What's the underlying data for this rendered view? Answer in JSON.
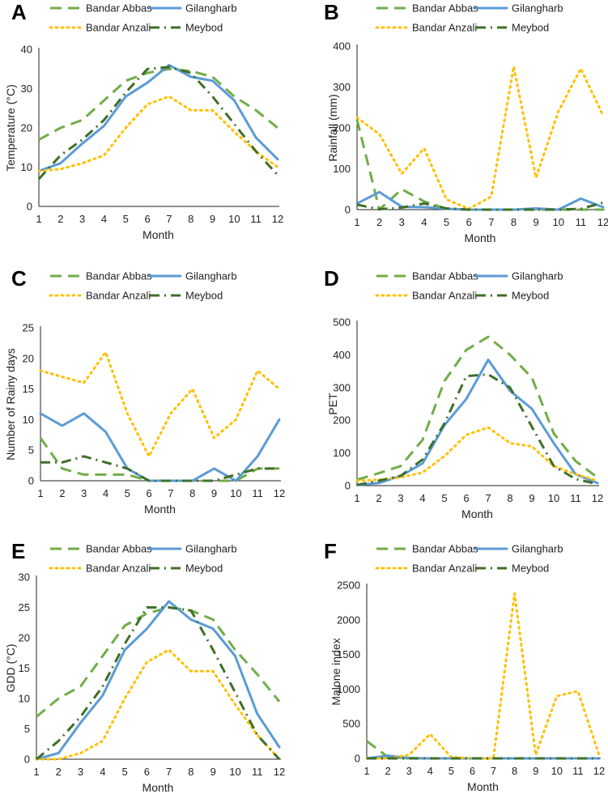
{
  "series_styles": {
    "Bandar Abbas": {
      "color": "#70ad47",
      "style": "dashed"
    },
    "Gilangharb": {
      "color": "#5b9bd5",
      "style": "solid"
    },
    "Bandar Anzali": {
      "color": "#ffc000",
      "style": "dotted"
    },
    "Meybod": {
      "color": "#3f6f27",
      "style": "dashdot"
    }
  },
  "chart_data": [
    {
      "panel": "A",
      "type": "line",
      "xlabel": "Month",
      "ylabel": "Temperature (°C)",
      "x": [
        1,
        2,
        3,
        4,
        5,
        6,
        7,
        8,
        9,
        10,
        11,
        12
      ],
      "ylim": [
        0,
        40
      ],
      "yticks": [
        0,
        10,
        20,
        30,
        40
      ],
      "legend": [
        "Bandar Abbas",
        "Gilangharb",
        "Bandar Anzali",
        "Meybod"
      ],
      "legend_position": "top",
      "series": [
        {
          "name": "Bandar Abbas",
          "values": [
            17,
            20,
            22,
            27,
            32,
            34,
            35,
            34.5,
            33,
            28,
            24.5,
            20
          ]
        },
        {
          "name": "Gilangharb",
          "values": [
            9,
            11,
            16,
            20.5,
            28,
            31.5,
            36,
            33,
            32,
            27,
            17.5,
            12
          ]
        },
        {
          "name": "Bandar Anzali",
          "values": [
            9,
            9.5,
            11,
            13,
            20,
            26,
            28,
            24.5,
            24.5,
            19,
            14,
            10
          ]
        },
        {
          "name": "Meybod",
          "values": [
            7,
            13,
            17,
            22,
            29,
            35,
            35.5,
            34,
            28,
            21,
            14,
            8
          ]
        }
      ]
    },
    {
      "panel": "B",
      "type": "line",
      "xlabel": "Month",
      "ylabel": "Rainfall (mm)",
      "x": [
        1,
        2,
        3,
        4,
        5,
        6,
        7,
        8,
        9,
        10,
        11,
        12
      ],
      "ylim": [
        0,
        400
      ],
      "yticks": [
        0,
        100,
        200,
        300,
        400
      ],
      "legend": [
        "Bandar Abbas",
        "Gilangharb",
        "Bandar Anzali",
        "Meybod"
      ],
      "legend_position": "top",
      "series": [
        {
          "name": "Bandar Abbas",
          "values": [
            220,
            0,
            50,
            20,
            2,
            0,
            0,
            0,
            0,
            0,
            0,
            0
          ]
        },
        {
          "name": "Gilangharb",
          "values": [
            15,
            43,
            7,
            6,
            2,
            0,
            0,
            0,
            3,
            0,
            27,
            6
          ]
        },
        {
          "name": "Bandar Anzali",
          "values": [
            225,
            185,
            88,
            150,
            25,
            2,
            32,
            350,
            78,
            240,
            345,
            230
          ]
        },
        {
          "name": "Meybod",
          "values": [
            12,
            1,
            5,
            15,
            3,
            0,
            0,
            0,
            0,
            0,
            2,
            17
          ]
        }
      ]
    },
    {
      "panel": "C",
      "type": "line",
      "xlabel": "Month",
      "ylabel": "Number of Rainy days",
      "x": [
        1,
        2,
        3,
        4,
        5,
        6,
        7,
        8,
        9,
        10,
        11,
        12
      ],
      "ylim": [
        0,
        25
      ],
      "yticks": [
        0,
        5,
        10,
        15,
        20,
        25
      ],
      "legend": [
        "Bandar Abbas",
        "Gilangharb",
        "Bandar Anzali",
        "Meybod"
      ],
      "legend_position": "top",
      "series": [
        {
          "name": "Bandar Abbas",
          "values": [
            7,
            2,
            1,
            1,
            1,
            0,
            0,
            0,
            0,
            0,
            2,
            2
          ]
        },
        {
          "name": "Gilangharb",
          "values": [
            11,
            9,
            11,
            8,
            2,
            0,
            0,
            0,
            2,
            0,
            4,
            10
          ]
        },
        {
          "name": "Bandar Anzali",
          "values": [
            18,
            17,
            16,
            21,
            11,
            4,
            11,
            15,
            7,
            10,
            18,
            15
          ]
        },
        {
          "name": "Meybod",
          "values": [
            3,
            3,
            4,
            3,
            2,
            0,
            0,
            0,
            0,
            1,
            2,
            2
          ]
        }
      ]
    },
    {
      "panel": "D",
      "type": "line",
      "xlabel": "Month",
      "ylabel": "PET",
      "x": [
        1,
        2,
        3,
        4,
        5,
        6,
        7,
        8,
        9,
        10,
        11,
        12
      ],
      "ylim": [
        0,
        500
      ],
      "yticks": [
        0,
        100,
        200,
        300,
        400,
        500
      ],
      "legend": [
        "Bandar Abbas",
        "Gilangharb",
        "Bandar Anzali",
        "Meybod"
      ],
      "legend_position": "top",
      "series": [
        {
          "name": "Bandar Abbas",
          "values": [
            18,
            38,
            60,
            140,
            320,
            415,
            455,
            400,
            330,
            160,
            75,
            25
          ]
        },
        {
          "name": "Gilangharb",
          "values": [
            2,
            8,
            30,
            68,
            185,
            265,
            385,
            290,
            235,
            130,
            35,
            8
          ]
        },
        {
          "name": "Bandar Anzali",
          "values": [
            15,
            18,
            25,
            40,
            90,
            155,
            178,
            130,
            120,
            60,
            35,
            15
          ]
        },
        {
          "name": "Meybod",
          "values": [
            2,
            15,
            30,
            80,
            190,
            335,
            340,
            300,
            180,
            60,
            20,
            5
          ]
        }
      ]
    },
    {
      "panel": "E",
      "type": "line",
      "xlabel": "Month",
      "ylabel": "GDD (°C)",
      "x": [
        1,
        2,
        3,
        4,
        5,
        6,
        7,
        8,
        9,
        10,
        11,
        12
      ],
      "ylim": [
        0,
        30
      ],
      "yticks": [
        0,
        5,
        10,
        15,
        20,
        25,
        30
      ],
      "legend": [
        "Bandar Abbas",
        "Gilangharb",
        "Bandar Anzali",
        "Meybod"
      ],
      "legend_position": "top",
      "series": [
        {
          "name": "Bandar Abbas",
          "values": [
            7,
            10,
            12,
            17,
            22,
            24,
            25,
            24.5,
            23,
            18,
            14,
            9.5
          ]
        },
        {
          "name": "Gilangharb",
          "values": [
            0,
            1,
            6,
            10.5,
            18,
            21.5,
            26,
            23,
            21.5,
            17,
            7.5,
            2
          ]
        },
        {
          "name": "Bandar Anzali",
          "values": [
            0,
            0,
            1,
            3,
            10,
            16,
            18,
            14.5,
            14.5,
            9,
            4,
            0
          ]
        },
        {
          "name": "Meybod",
          "values": [
            0,
            3,
            7,
            12,
            19,
            25,
            25,
            24.5,
            18,
            11,
            4,
            0
          ]
        }
      ]
    },
    {
      "panel": "F",
      "type": "line",
      "xlabel": "Month",
      "ylabel": "Malone index",
      "x": [
        1,
        2,
        3,
        4,
        5,
        6,
        7,
        8,
        9,
        10,
        11,
        12
      ],
      "ylim": [
        0,
        2500
      ],
      "yticks": [
        0,
        500,
        1000,
        1500,
        2000,
        2500
      ],
      "legend": [
        "Bandar Abbas",
        "Gilangharb",
        "Bandar Anzali",
        "Meybod"
      ],
      "legend_position": "top",
      "series": [
        {
          "name": "Bandar Abbas",
          "values": [
            250,
            20,
            0,
            0,
            0,
            0,
            0,
            0,
            0,
            0,
            0,
            0
          ]
        },
        {
          "name": "Gilangharb",
          "values": [
            0,
            40,
            5,
            0,
            0,
            0,
            0,
            0,
            0,
            0,
            0,
            0
          ]
        },
        {
          "name": "Bandar Anzali",
          "values": [
            0,
            0,
            50,
            350,
            20,
            0,
            0,
            2380,
            50,
            900,
            970,
            50
          ]
        },
        {
          "name": "Meybod",
          "values": [
            0,
            0,
            0,
            0,
            0,
            0,
            0,
            0,
            0,
            0,
            0,
            0
          ]
        }
      ]
    }
  ]
}
